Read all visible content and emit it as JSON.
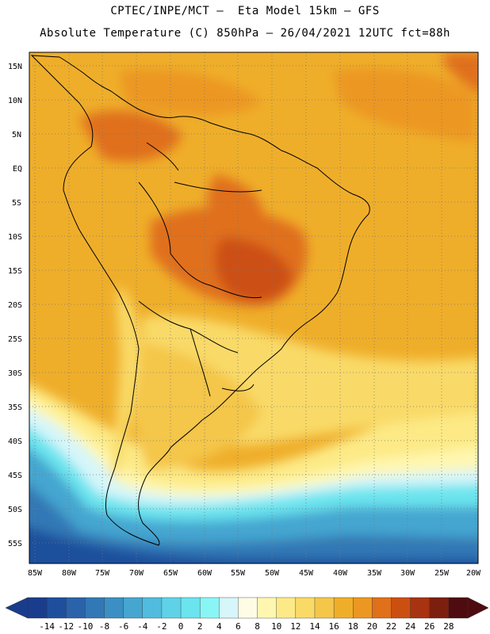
{
  "header": {
    "line1": "CPTEC/INPE/MCT –  Eta Model 15km – GFS",
    "line2": "Absolute Temperature (C) 850hPa – 26/04/2021 12UTC fct=88h"
  },
  "map": {
    "lat_labels": [
      "15N",
      "10N",
      "5N",
      "EQ",
      "5S",
      "10S",
      "15S",
      "20S",
      "25S",
      "30S",
      "35S",
      "40S",
      "45S",
      "50S",
      "55S"
    ],
    "lon_labels": [
      "85W",
      "80W",
      "75W",
      "70W",
      "65W",
      "60W",
      "55W",
      "50W",
      "45W",
      "40W",
      "35W",
      "30W",
      "25W",
      "20W"
    ]
  },
  "colorbar": {
    "levels": [
      "-14",
      "-12",
      "-10",
      "-8",
      "-6",
      "-4",
      "-2",
      "0",
      "2",
      "4",
      "6",
      "8",
      "10",
      "12",
      "14",
      "16",
      "18",
      "20",
      "22",
      "24",
      "26",
      "28"
    ],
    "colors": [
      "#1a3c8c",
      "#1f4f9c",
      "#2a63aa",
      "#3278b6",
      "#3b8fc4",
      "#45a6d0",
      "#52bcde",
      "#5fd2e8",
      "#6ae4ee",
      "#8af5f5",
      "#d6f6fa",
      "#fffce6",
      "#fff7b0",
      "#fdea86",
      "#f9da67",
      "#f4c64a",
      "#efae2a",
      "#ec9721",
      "#e0701a",
      "#cc4f12",
      "#a83310",
      "#7d1f0e",
      "#4e0c10"
    ]
  }
}
